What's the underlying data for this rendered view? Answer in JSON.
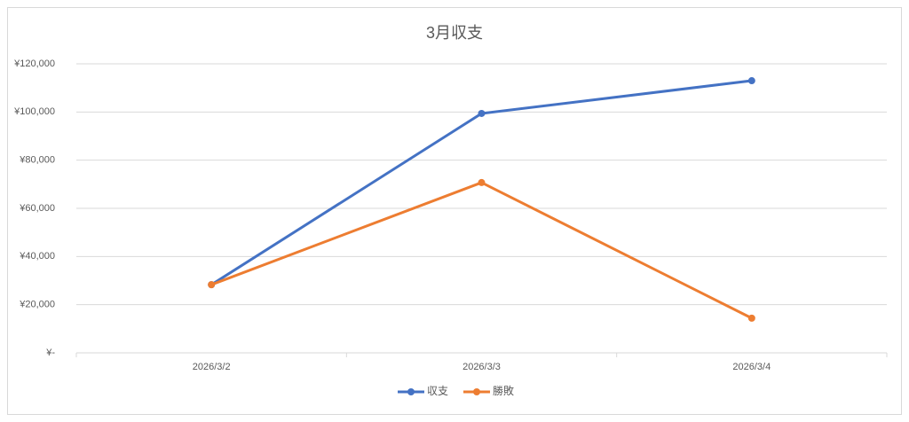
{
  "chart_data": {
    "type": "line",
    "title": "3月収支",
    "categories": [
      "2026/3/2",
      "2026/3/3",
      "2026/3/4"
    ],
    "series": [
      {
        "name": "収支",
        "color": "#4472c4",
        "values": [
          28300,
          99400,
          113000
        ]
      },
      {
        "name": "勝敗",
        "color": "#ed7d31",
        "values": [
          28300,
          70700,
          14400
        ]
      }
    ],
    "ylim": [
      0,
      120000
    ],
    "yticks": [
      {
        "value": 0,
        "label": "¥-"
      },
      {
        "value": 20000,
        "label": "¥20,000"
      },
      {
        "value": 40000,
        "label": "¥40,000"
      },
      {
        "value": 60000,
        "label": "¥60,000"
      },
      {
        "value": 80000,
        "label": "¥80,000"
      },
      {
        "value": 100000,
        "label": "¥100,000"
      },
      {
        "value": 120000,
        "label": "¥120,000"
      }
    ],
    "grid": true,
    "legend": "bottom"
  }
}
